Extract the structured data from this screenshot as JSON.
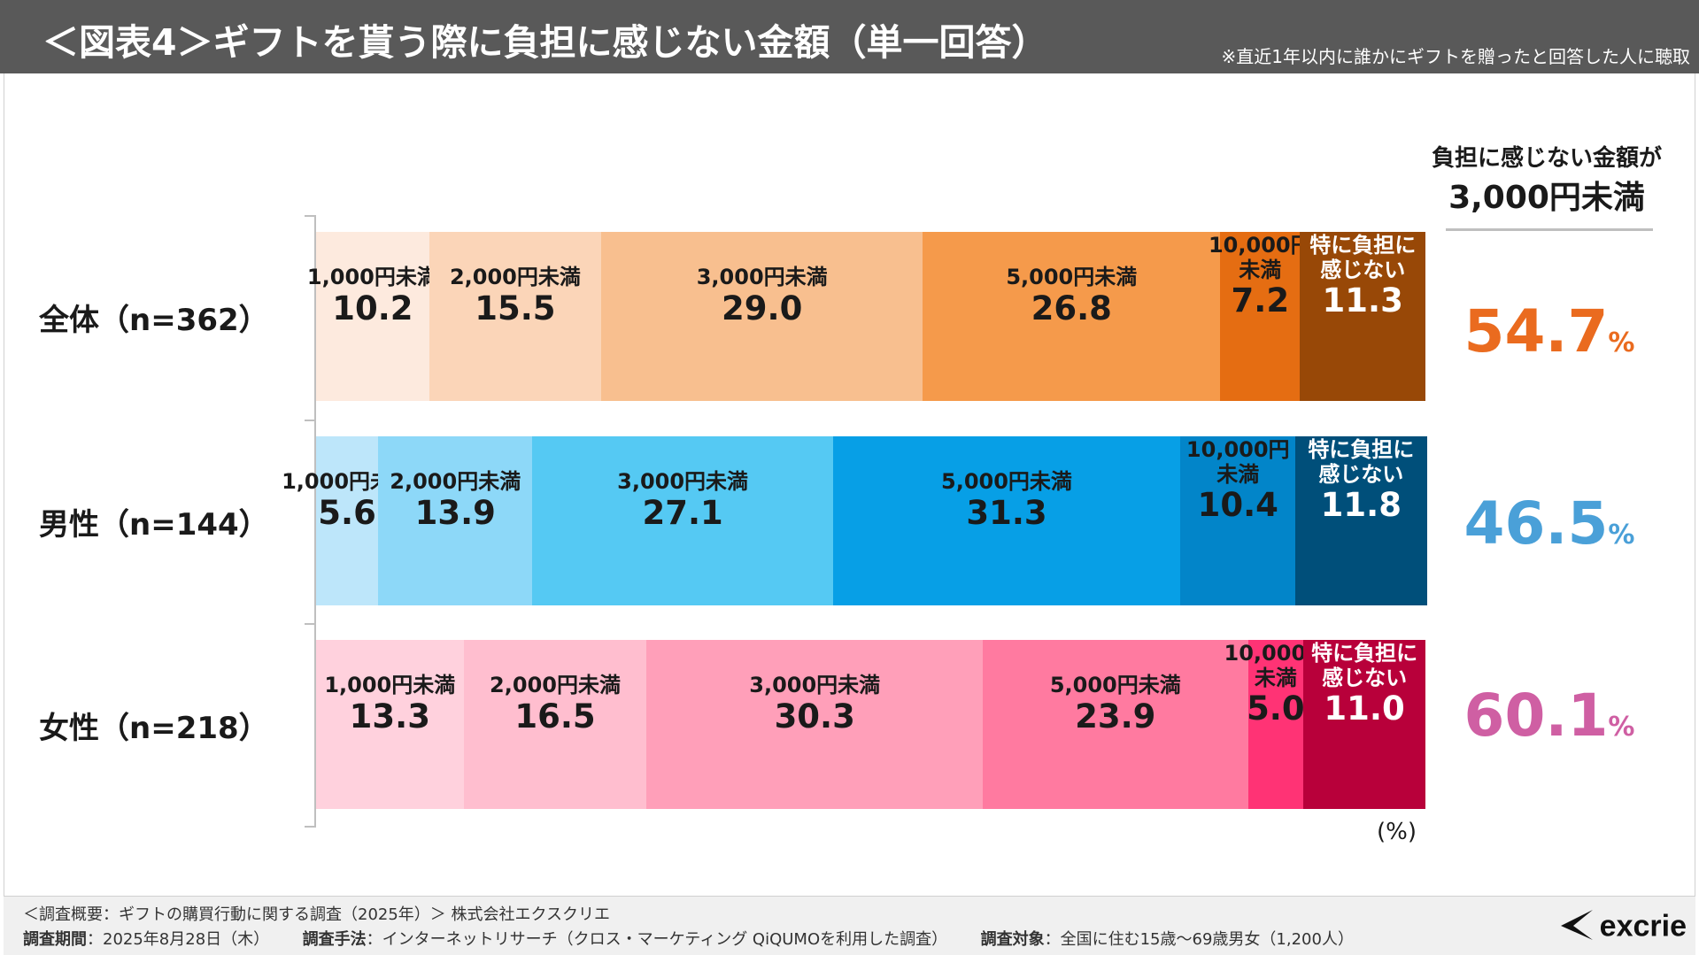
{
  "header": {
    "title": "＜図表4＞ギフトを貰う際に負担に感じない金額（単一回答）",
    "note": "※直近1年以内に誰かにギフトを贈ったと回答した人に聴取"
  },
  "right_panel": {
    "heading_line1": "負担に感じない金額が",
    "heading_line2": "3,000円未満",
    "percent_unit": "%",
    "values": [
      "54.7",
      "46.5",
      "60.1"
    ],
    "colors": [
      "#ea6b1f",
      "#4aa0d8",
      "#cf5fa3"
    ]
  },
  "chart_data": {
    "type": "bar",
    "orientation": "horizontal",
    "stacked": true,
    "unit_label": "(%)",
    "xlim": [
      0,
      100
    ],
    "categories": [
      "1,000円未満",
      "2,000円未満",
      "3,000円未満",
      "5,000円未満",
      "10,000円未満",
      "特に負担に感じない"
    ],
    "category_label_lines": [
      [
        "1,000円未満"
      ],
      [
        "2,000円未満"
      ],
      [
        "3,000円未満"
      ],
      [
        "5,000円未満"
      ],
      [
        "10,000円",
        "未満"
      ],
      [
        "特に負担に",
        "感じない"
      ]
    ],
    "rows": [
      {
        "label": "全体（n=362）",
        "values": [
          10.2,
          15.5,
          29.0,
          26.8,
          7.2,
          11.3
        ],
        "value_labels": [
          "10.2",
          "15.5",
          "29.0",
          "26.8",
          "7.2",
          "11.3"
        ],
        "colors": [
          "#fdeade",
          "#fbd5b8",
          "#f8bf8f",
          "#f59a4b",
          "#e56d12",
          "#984807"
        ]
      },
      {
        "label": "男性（n=144）",
        "values": [
          5.6,
          13.9,
          27.1,
          31.3,
          10.4,
          11.8
        ],
        "value_labels": [
          "5.6",
          "13.9",
          "27.1",
          "31.3",
          "10.4",
          "11.8"
        ],
        "colors": [
          "#bde6fa",
          "#8dd8f8",
          "#55c9f3",
          "#079fe6",
          "#0285c9",
          "#004f7a"
        ]
      },
      {
        "label": "女性（n=218）",
        "values": [
          13.3,
          16.5,
          30.3,
          23.9,
          5.0,
          11.0
        ],
        "value_labels": [
          "13.3",
          "16.5",
          "30.3",
          "23.9",
          "5.0",
          "11.0"
        ],
        "colors": [
          "#ffd1dd",
          "#ffbecf",
          "#ff9fb9",
          "#ff7aa0",
          "#ff3375",
          "#b8003a"
        ]
      }
    ],
    "label_text_colors": [
      "#1a1a1a",
      "#1a1a1a",
      "#1a1a1a",
      "#1a1a1a",
      "#1a1a1a",
      "#ffffff"
    ]
  },
  "footer": {
    "line1": "＜調査概要：ギフトの購買行動に関する調査（2025年）＞ 株式会社エクスクリエ",
    "period_label": "調査期間",
    "period_value": "：2025年8月28日（木）",
    "method_label": "調査手法",
    "method_value": "：インターネットリサーチ（クロス・マーケティング QiQUMOを利用した調査）",
    "target_label": "調査対象",
    "target_value": "：全国に住む15歳～69歳男女（1,200人）"
  },
  "logo": {
    "text": "excrie",
    "icon": "excrie-logo-icon"
  }
}
